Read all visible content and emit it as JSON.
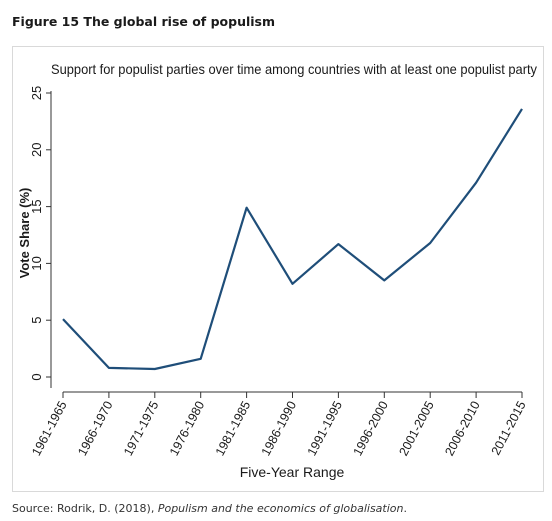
{
  "figure_title": "Figure 15 The global rise of populism",
  "source": {
    "prefix": "Source: Rodrik, D. (2018), ",
    "title": "Populism and the economics of globalisation",
    "suffix": "."
  },
  "chart_data": {
    "type": "line",
    "title": "Support for populist parties over time among countries with at least one populist party",
    "xlabel": "Five-Year Range",
    "ylabel": "Vote Share (%)",
    "categories": [
      "1961-1965",
      "1966-1970",
      "1971-1975",
      "1976-1980",
      "1981-1985",
      "1986-1990",
      "1991-1995",
      "1996-2000",
      "2001-2005",
      "2006-2010",
      "2011-2015"
    ],
    "series": [
      {
        "values": [
          5.1,
          0.8,
          0.7,
          1.6,
          14.9,
          8.2,
          11.7,
          8.5,
          11.8,
          17.1,
          23.6
        ]
      }
    ],
    "ylim": [
      0,
      25
    ],
    "yticks": [
      0,
      5,
      10,
      15,
      20,
      25
    ],
    "grid": false,
    "line_color": "#1f4e79"
  }
}
